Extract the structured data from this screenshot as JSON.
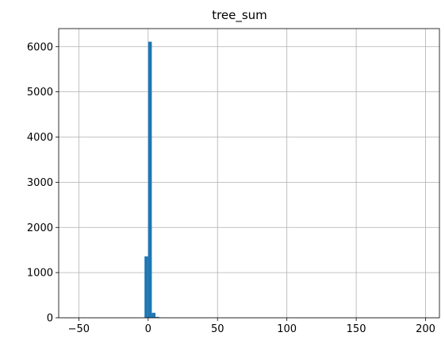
{
  "chart_data": {
    "type": "bar",
    "title": "tree_sum",
    "xlabel": "",
    "ylabel": "",
    "xlim": [
      -64.5,
      210
    ],
    "ylim": [
      0,
      6400
    ],
    "grid": true,
    "bar_color": "#1f77b4",
    "bin_width": 2.63,
    "x_ticks": [
      {
        "value": -50,
        "label": "−50"
      },
      {
        "value": 0,
        "label": "0"
      },
      {
        "value": 50,
        "label": "50"
      },
      {
        "value": 100,
        "label": "100"
      },
      {
        "value": 150,
        "label": "150"
      },
      {
        "value": 200,
        "label": "200"
      }
    ],
    "y_ticks": [
      {
        "value": 0,
        "label": "0"
      },
      {
        "value": 1000,
        "label": "1000"
      },
      {
        "value": 2000,
        "label": "2000"
      },
      {
        "value": 3000,
        "label": "3000"
      },
      {
        "value": 4000,
        "label": "4000"
      },
      {
        "value": 5000,
        "label": "5000"
      },
      {
        "value": 6000,
        "label": "6000"
      }
    ],
    "bins": [
      {
        "start": -2.63,
        "value": 1360
      },
      {
        "start": 0.0,
        "value": 6110
      },
      {
        "start": 2.63,
        "value": 110
      },
      {
        "start": 5.26,
        "value": 20
      },
      {
        "start": 7.89,
        "value": 8
      },
      {
        "start": 10.52,
        "value": 3
      }
    ]
  }
}
